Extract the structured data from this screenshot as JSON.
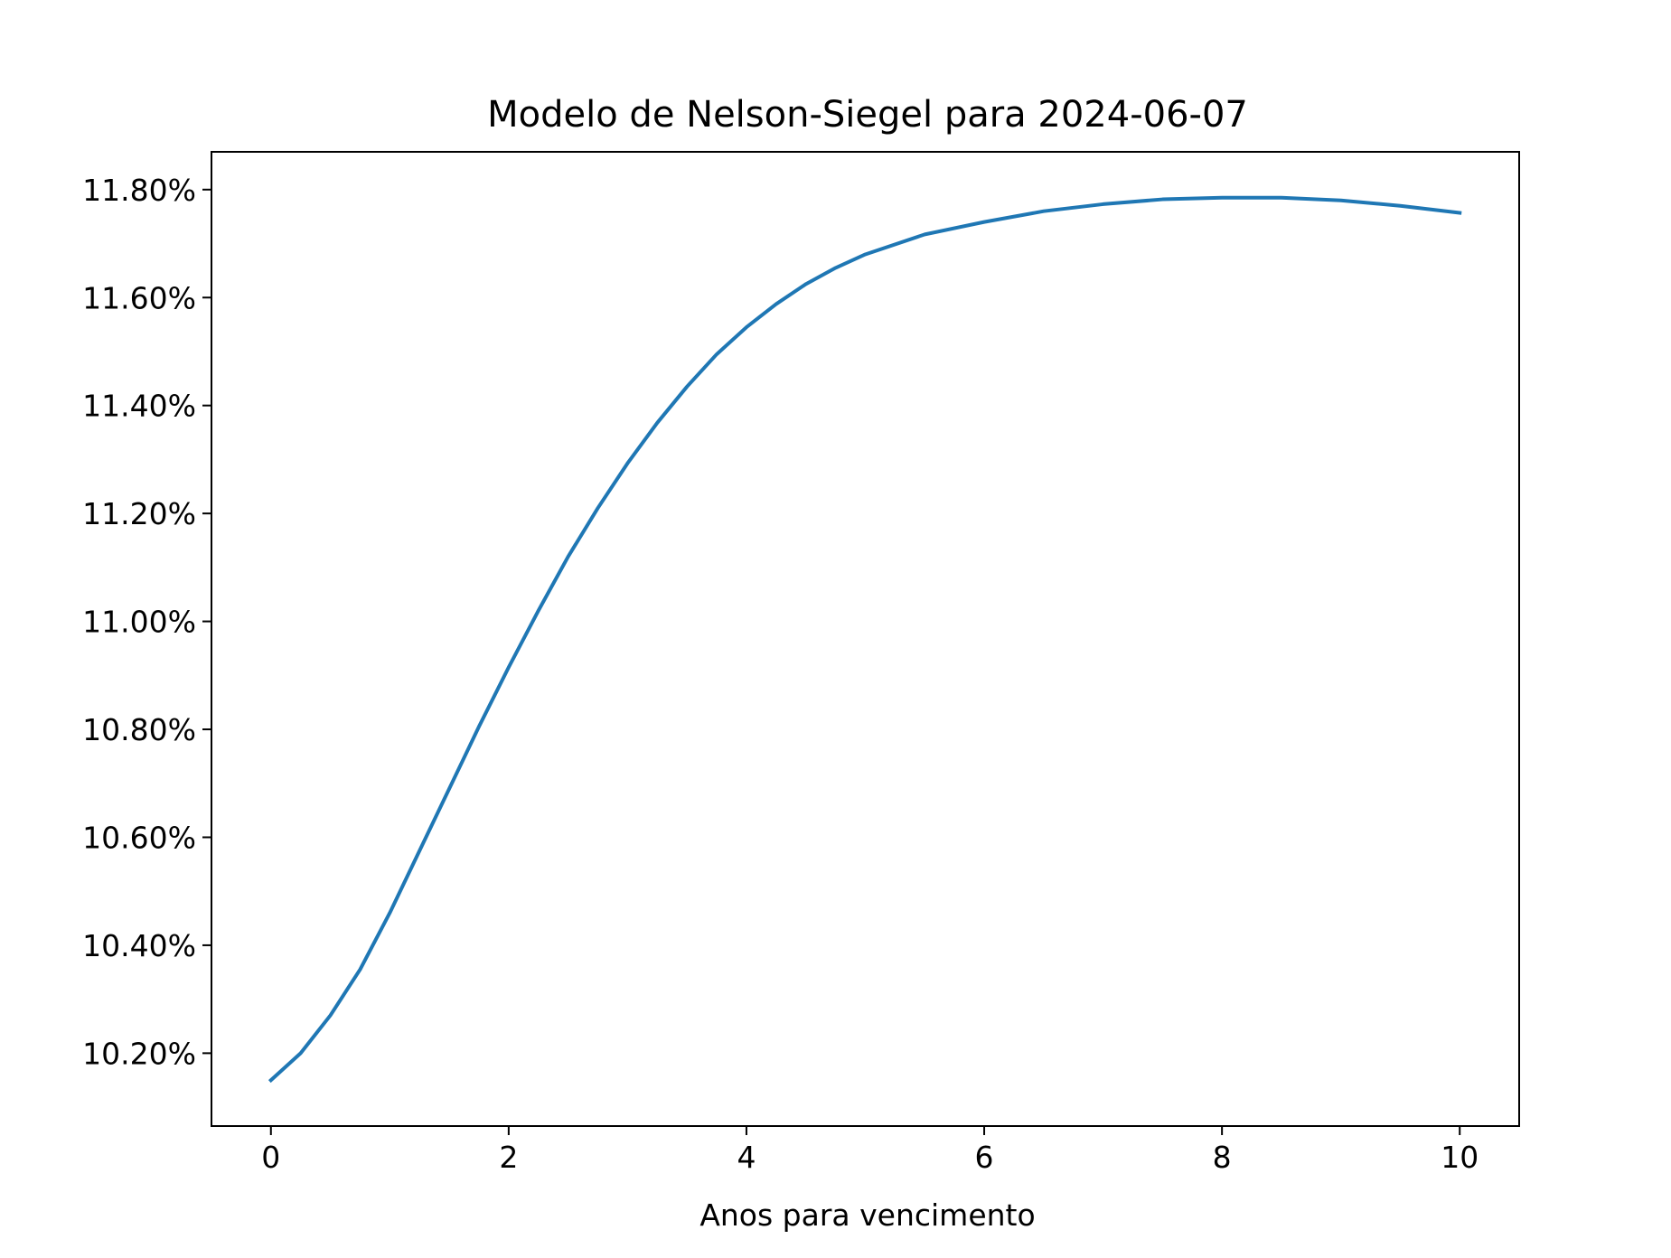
{
  "chart_data": {
    "type": "line",
    "title": "Modelo de Nelson-Siegel para 2024-06-07",
    "xlabel": "Anos para vencimento",
    "ylabel": "",
    "xlim": [
      -0.5,
      10.5
    ],
    "ylim": [
      0.10065,
      0.1187
    ],
    "xticks": [
      0,
      2,
      4,
      6,
      8,
      10
    ],
    "xtick_labels": [
      "0",
      "2",
      "4",
      "6",
      "8",
      "10"
    ],
    "yticks": [
      0.102,
      0.104,
      0.106,
      0.108,
      0.11,
      0.112,
      0.114,
      0.116,
      0.118
    ],
    "ytick_labels": [
      "10.20%",
      "10.40%",
      "10.60%",
      "10.80%",
      "11.00%",
      "11.20%",
      "11.40%",
      "11.60%",
      "11.80%"
    ],
    "grid": false,
    "series": [
      {
        "color": "#1f77b4",
        "x": [
          0,
          0.25,
          0.5,
          0.75,
          1,
          1.25,
          1.5,
          1.75,
          2,
          2.25,
          2.5,
          2.75,
          3,
          3.25,
          3.5,
          3.75,
          4,
          4.25,
          4.5,
          4.75,
          5,
          5.5,
          6,
          6.5,
          7,
          7.5,
          8,
          8.5,
          9,
          9.5,
          10
        ],
        "y": [
          0.1015,
          0.102,
          0.1027,
          0.10355,
          0.1046,
          0.10575,
          0.1069,
          0.10805,
          0.10915,
          0.1102,
          0.1112,
          0.1121,
          0.11293,
          0.11368,
          0.11435,
          0.11495,
          0.11545,
          0.11588,
          0.11625,
          0.11655,
          0.1168,
          0.11717,
          0.1174,
          0.1176,
          0.11773,
          0.11782,
          0.11785,
          0.11785,
          0.1178,
          0.1177,
          0.11757
        ]
      }
    ]
  }
}
